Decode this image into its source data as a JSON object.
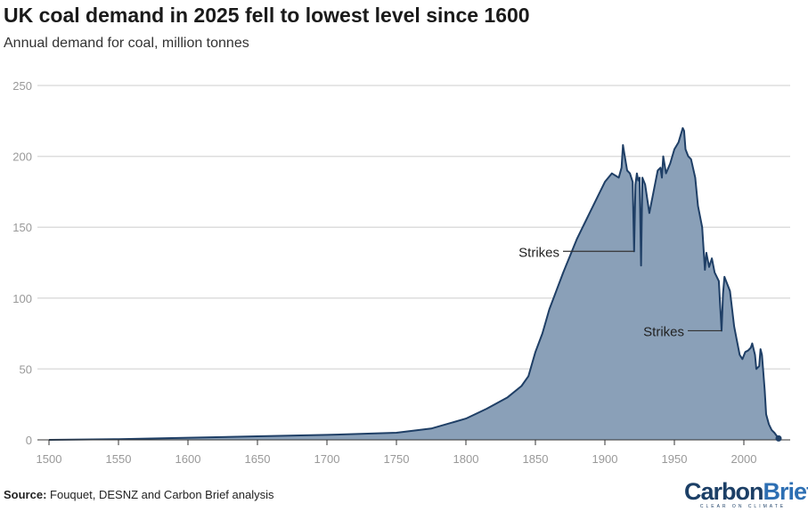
{
  "title": "UK coal demand in 2025 fell to lowest level since 1600",
  "subtitle": "Annual demand for coal, million tonnes",
  "source_label": "Source:",
  "source_text": "Fouquet, DESNZ and Carbon Brief analysis",
  "logo": {
    "part1": "Carbon",
    "part2": "Brief",
    "tagline": "CLEAR ON CLIMATE"
  },
  "colors": {
    "fill": "#8aa0b8",
    "line": "#1f3f66",
    "grid": "#dddddd",
    "axis_text": "#999999"
  },
  "chart_data": {
    "type": "area",
    "title": "UK coal demand in 2025 fell to lowest level since 1600",
    "xlabel": "",
    "ylabel": "Annual demand for coal, million tonnes",
    "xlim": [
      1500,
      2025
    ],
    "ylim": [
      0,
      250
    ],
    "x_ticks": [
      "1500",
      "1550",
      "1600",
      "1650",
      "1700",
      "1750",
      "1800",
      "1850",
      "1900",
      "1950",
      "2000"
    ],
    "y_ticks": [
      "0",
      "50",
      "100",
      "150",
      "200",
      "250"
    ],
    "grid": true,
    "annotations": [
      {
        "text": "Strikes",
        "year": 1921,
        "value": 133
      },
      {
        "text": "Strikes",
        "year": 1984,
        "value": 77
      }
    ],
    "series": [
      {
        "name": "Coal demand",
        "points": [
          [
            1500,
            0
          ],
          [
            1550,
            0.5
          ],
          [
            1600,
            1.5
          ],
          [
            1650,
            2.5
          ],
          [
            1700,
            3.5
          ],
          [
            1750,
            5
          ],
          [
            1775,
            8
          ],
          [
            1800,
            15
          ],
          [
            1815,
            22
          ],
          [
            1830,
            30
          ],
          [
            1840,
            38
          ],
          [
            1845,
            45
          ],
          [
            1850,
            62
          ],
          [
            1855,
            75
          ],
          [
            1860,
            92
          ],
          [
            1865,
            105
          ],
          [
            1870,
            118
          ],
          [
            1875,
            130
          ],
          [
            1880,
            142
          ],
          [
            1885,
            152
          ],
          [
            1890,
            162
          ],
          [
            1895,
            172
          ],
          [
            1900,
            182
          ],
          [
            1905,
            188
          ],
          [
            1910,
            185
          ],
          [
            1912,
            192
          ],
          [
            1913,
            208
          ],
          [
            1914,
            202
          ],
          [
            1916,
            190
          ],
          [
            1918,
            188
          ],
          [
            1920,
            182
          ],
          [
            1921,
            133
          ],
          [
            1922,
            180
          ],
          [
            1923,
            188
          ],
          [
            1924,
            183
          ],
          [
            1925,
            185
          ],
          [
            1926,
            123
          ],
          [
            1927,
            185
          ],
          [
            1929,
            180
          ],
          [
            1932,
            160
          ],
          [
            1935,
            175
          ],
          [
            1938,
            190
          ],
          [
            1940,
            192
          ],
          [
            1941,
            185
          ],
          [
            1942,
            200
          ],
          [
            1944,
            188
          ],
          [
            1947,
            195
          ],
          [
            1950,
            205
          ],
          [
            1953,
            210
          ],
          [
            1956,
            220
          ],
          [
            1957,
            218
          ],
          [
            1958,
            205
          ],
          [
            1960,
            200
          ],
          [
            1962,
            198
          ],
          [
            1965,
            185
          ],
          [
            1967,
            165
          ],
          [
            1970,
            150
          ],
          [
            1972,
            120
          ],
          [
            1973,
            132
          ],
          [
            1975,
            122
          ],
          [
            1977,
            128
          ],
          [
            1979,
            118
          ],
          [
            1982,
            112
          ],
          [
            1984,
            77
          ],
          [
            1985,
            103
          ],
          [
            1986,
            115
          ],
          [
            1988,
            110
          ],
          [
            1990,
            105
          ],
          [
            1993,
            80
          ],
          [
            1995,
            70
          ],
          [
            1997,
            60
          ],
          [
            1999,
            57
          ],
          [
            2001,
            62
          ],
          [
            2003,
            63
          ],
          [
            2005,
            65
          ],
          [
            2006,
            68
          ],
          [
            2008,
            60
          ],
          [
            2009,
            50
          ],
          [
            2011,
            52
          ],
          [
            2012,
            64
          ],
          [
            2013,
            60
          ],
          [
            2014,
            48
          ],
          [
            2015,
            35
          ],
          [
            2016,
            18
          ],
          [
            2018,
            11
          ],
          [
            2020,
            7
          ],
          [
            2022,
            5
          ],
          [
            2025,
            1
          ]
        ]
      }
    ]
  }
}
